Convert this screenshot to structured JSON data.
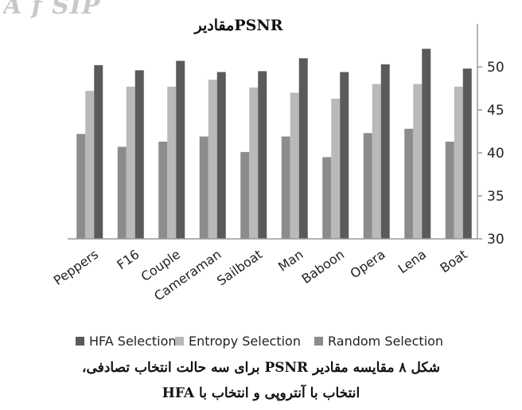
{
  "watermark": "A     f SIP",
  "chart_data": {
    "type": "bar",
    "title": "مقادیرPSNR",
    "categories": [
      "Peppers",
      "F16",
      "Couple",
      "Cameraman",
      "Sailboat",
      "Man",
      "Baboon",
      "Opera",
      "Lena",
      "Boat"
    ],
    "series": [
      {
        "name": "Random Selection",
        "color": "#8c8c8c",
        "values": [
          42.2,
          40.7,
          41.3,
          41.9,
          40.1,
          41.9,
          39.5,
          42.3,
          42.8,
          41.3
        ]
      },
      {
        "name": "Entropy Selection",
        "color": "#b9b9b9",
        "values": [
          47.2,
          47.7,
          47.7,
          48.5,
          47.6,
          47.0,
          46.3,
          48.0,
          48.0,
          47.7
        ]
      },
      {
        "name": "HFA Selection",
        "color": "#5a5a5a",
        "values": [
          50.2,
          49.6,
          50.7,
          49.4,
          49.5,
          51.0,
          49.4,
          50.3,
          52.1,
          49.8
        ]
      }
    ],
    "legend_order": [
      "HFA Selection",
      "Entropy Selection",
      "Random Selection"
    ],
    "legend_position": "bottom",
    "y_axis_position": "right",
    "ylim": [
      30,
      55
    ],
    "yticks": [
      30,
      35,
      40,
      45,
      50
    ],
    "grid": false,
    "xlabel": "",
    "ylabel": ""
  },
  "caption": {
    "line1": "شکل ۸ مقایسه مقادیر PSNR برای سه حالت انتخاب تصادفی،",
    "line2": "انتخاب با آنتروپی و انتخاب با HFA"
  }
}
